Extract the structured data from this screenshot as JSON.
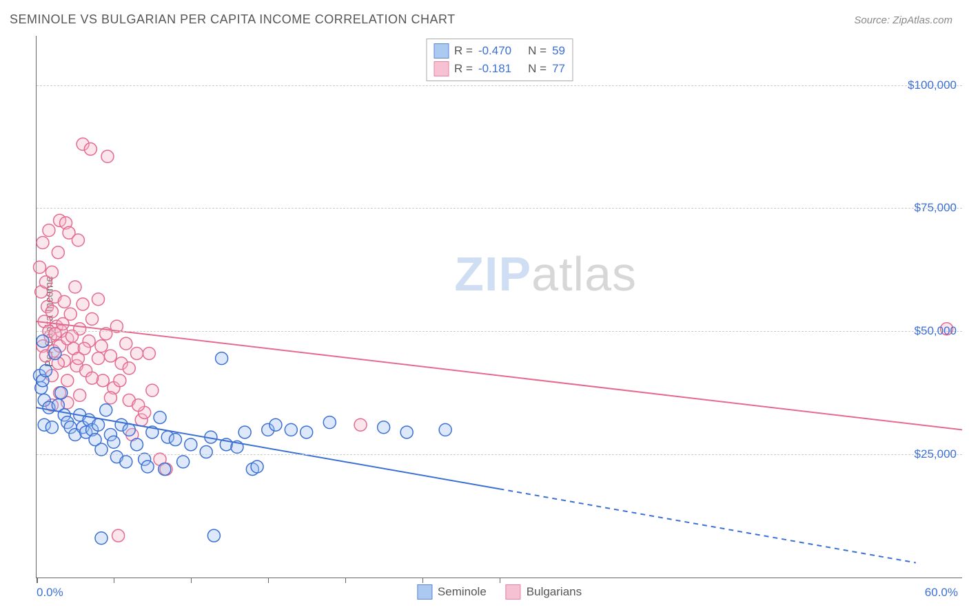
{
  "header": {
    "title": "SEMINOLE VS BULGARIAN PER CAPITA INCOME CORRELATION CHART",
    "source_prefix": "Source: ",
    "source": "ZipAtlas.com"
  },
  "chart": {
    "type": "scatter",
    "ylabel": "Per Capita Income",
    "background_color": "#ffffff",
    "grid_color": "#cccccc",
    "axis_color": "#666666",
    "label_color": "#555555",
    "tick_label_color": "#3b6fd4",
    "xlim": [
      0,
      60
    ],
    "ylim": [
      0,
      110000
    ],
    "x_tick_positions": [
      0,
      5,
      10,
      15,
      20,
      25,
      30
    ],
    "x_axis_labels": {
      "left": "0.0%",
      "right": "60.0%"
    },
    "y_ticks": [
      {
        "value": 25000,
        "label": "$25,000"
      },
      {
        "value": 50000,
        "label": "$50,000"
      },
      {
        "value": 75000,
        "label": "$75,000"
      },
      {
        "value": 100000,
        "label": "$100,000"
      }
    ],
    "watermark": {
      "part1": "ZIP",
      "part2": "atlas"
    },
    "marker_radius": 9,
    "marker_stroke_width": 1.5,
    "marker_fill_opacity": 0.35,
    "line_width": 2,
    "series": [
      {
        "id": "seminole",
        "label": "Seminole",
        "color_stroke": "#3b6fd4",
        "color_fill": "#9ec0f0",
        "r_value": "-0.470",
        "n_value": "59",
        "trend": {
          "x1": 0,
          "y1": 34500,
          "x2": 30,
          "y2": 18000,
          "dashed_x2": 57,
          "dashed_y2": 3000
        },
        "points": [
          [
            0.2,
            41000
          ],
          [
            0.3,
            38500
          ],
          [
            0.4,
            48000
          ],
          [
            0.4,
            40000
          ],
          [
            0.5,
            36000
          ],
          [
            0.6,
            42000
          ],
          [
            0.8,
            34500
          ],
          [
            0.5,
            31000
          ],
          [
            1.0,
            30500
          ],
          [
            1.2,
            45500
          ],
          [
            1.4,
            35000
          ],
          [
            1.6,
            37500
          ],
          [
            1.8,
            33000
          ],
          [
            2.0,
            31500
          ],
          [
            2.2,
            30500
          ],
          [
            2.5,
            29000
          ],
          [
            2.8,
            33000
          ],
          [
            3.0,
            30500
          ],
          [
            3.2,
            29500
          ],
          [
            3.4,
            32000
          ],
          [
            3.6,
            30000
          ],
          [
            3.8,
            28000
          ],
          [
            4.0,
            31000
          ],
          [
            4.2,
            26000
          ],
          [
            4.5,
            34000
          ],
          [
            4.8,
            29000
          ],
          [
            5.0,
            27500
          ],
          [
            5.2,
            24500
          ],
          [
            5.5,
            31000
          ],
          [
            5.8,
            23500
          ],
          [
            6.0,
            30000
          ],
          [
            6.5,
            27000
          ],
          [
            7.0,
            24000
          ],
          [
            7.2,
            22500
          ],
          [
            7.5,
            29500
          ],
          [
            8.0,
            32500
          ],
          [
            8.3,
            22000
          ],
          [
            8.5,
            28500
          ],
          [
            9.0,
            28000
          ],
          [
            9.5,
            23500
          ],
          [
            10.0,
            27000
          ],
          [
            11.0,
            25500
          ],
          [
            11.3,
            28500
          ],
          [
            11.5,
            8500
          ],
          [
            12.0,
            44500
          ],
          [
            12.3,
            27000
          ],
          [
            13.0,
            26500
          ],
          [
            13.5,
            29500
          ],
          [
            14.0,
            22000
          ],
          [
            14.3,
            22500
          ],
          [
            15.0,
            30000
          ],
          [
            15.5,
            31000
          ],
          [
            16.5,
            30000
          ],
          [
            17.5,
            29500
          ],
          [
            19.0,
            31500
          ],
          [
            22.5,
            30500
          ],
          [
            24.0,
            29500
          ],
          [
            26.5,
            30000
          ],
          [
            4.2,
            8000
          ]
        ]
      },
      {
        "id": "bulgarians",
        "label": "Bulgarians",
        "color_stroke": "#e46a8e",
        "color_fill": "#f5b8cc",
        "r_value": "-0.181",
        "n_value": "77",
        "trend": {
          "x1": 0,
          "y1": 52000,
          "x2": 60,
          "y2": 30000,
          "dashed_x2": null,
          "dashed_y2": null
        },
        "points": [
          [
            0.2,
            63000
          ],
          [
            0.3,
            58000
          ],
          [
            0.4,
            68000
          ],
          [
            0.5,
            52000
          ],
          [
            0.6,
            60000
          ],
          [
            0.7,
            55000
          ],
          [
            0.8,
            70500
          ],
          [
            0.9,
            49000
          ],
          [
            1.0,
            54000
          ],
          [
            1.0,
            62000
          ],
          [
            1.1,
            46000
          ],
          [
            1.2,
            57000
          ],
          [
            1.3,
            51000
          ],
          [
            1.4,
            66000
          ],
          [
            1.5,
            47000
          ],
          [
            1.5,
            72500
          ],
          [
            1.6,
            50000
          ],
          [
            1.8,
            56000
          ],
          [
            1.8,
            44000
          ],
          [
            1.9,
            72000
          ],
          [
            2.0,
            48500
          ],
          [
            2.1,
            70000
          ],
          [
            2.2,
            53500
          ],
          [
            2.4,
            46500
          ],
          [
            2.5,
            59000
          ],
          [
            2.6,
            43000
          ],
          [
            2.7,
            68500
          ],
          [
            2.8,
            50500
          ],
          [
            3.0,
            55500
          ],
          [
            3.0,
            88000
          ],
          [
            3.2,
            42000
          ],
          [
            3.4,
            48000
          ],
          [
            3.5,
            87000
          ],
          [
            3.6,
            52500
          ],
          [
            4.0,
            44500
          ],
          [
            4.0,
            56500
          ],
          [
            4.3,
            40000
          ],
          [
            4.5,
            49500
          ],
          [
            4.6,
            85500
          ],
          [
            4.8,
            45000
          ],
          [
            5.0,
            38500
          ],
          [
            5.2,
            51000
          ],
          [
            5.5,
            43500
          ],
          [
            5.8,
            47500
          ],
          [
            6.0,
            36000
          ],
          [
            6.2,
            29000
          ],
          [
            6.5,
            45500
          ],
          [
            6.8,
            32000
          ],
          [
            7.0,
            33500
          ],
          [
            7.3,
            45500
          ],
          [
            7.5,
            38000
          ],
          [
            8.0,
            24000
          ],
          [
            8.4,
            22000
          ],
          [
            5.3,
            8500
          ],
          [
            21.0,
            31000
          ],
          [
            59.0,
            50500
          ],
          [
            0.4,
            47000
          ],
          [
            0.6,
            45000
          ],
          [
            0.8,
            50000
          ],
          [
            1.0,
            41000
          ],
          [
            1.2,
            49500
          ],
          [
            1.4,
            43500
          ],
          [
            1.7,
            51500
          ],
          [
            2.0,
            40000
          ],
          [
            2.3,
            49000
          ],
          [
            2.7,
            44500
          ],
          [
            3.1,
            46500
          ],
          [
            3.6,
            40500
          ],
          [
            4.2,
            47000
          ],
          [
            4.8,
            36500
          ],
          [
            5.4,
            40000
          ],
          [
            6.0,
            42500
          ],
          [
            6.6,
            35000
          ],
          [
            1.0,
            35000
          ],
          [
            1.5,
            37500
          ],
          [
            2.0,
            35500
          ],
          [
            2.8,
            37000
          ]
        ]
      }
    ],
    "legend_top": {
      "r_label": "R =",
      "n_label": "N ="
    }
  }
}
